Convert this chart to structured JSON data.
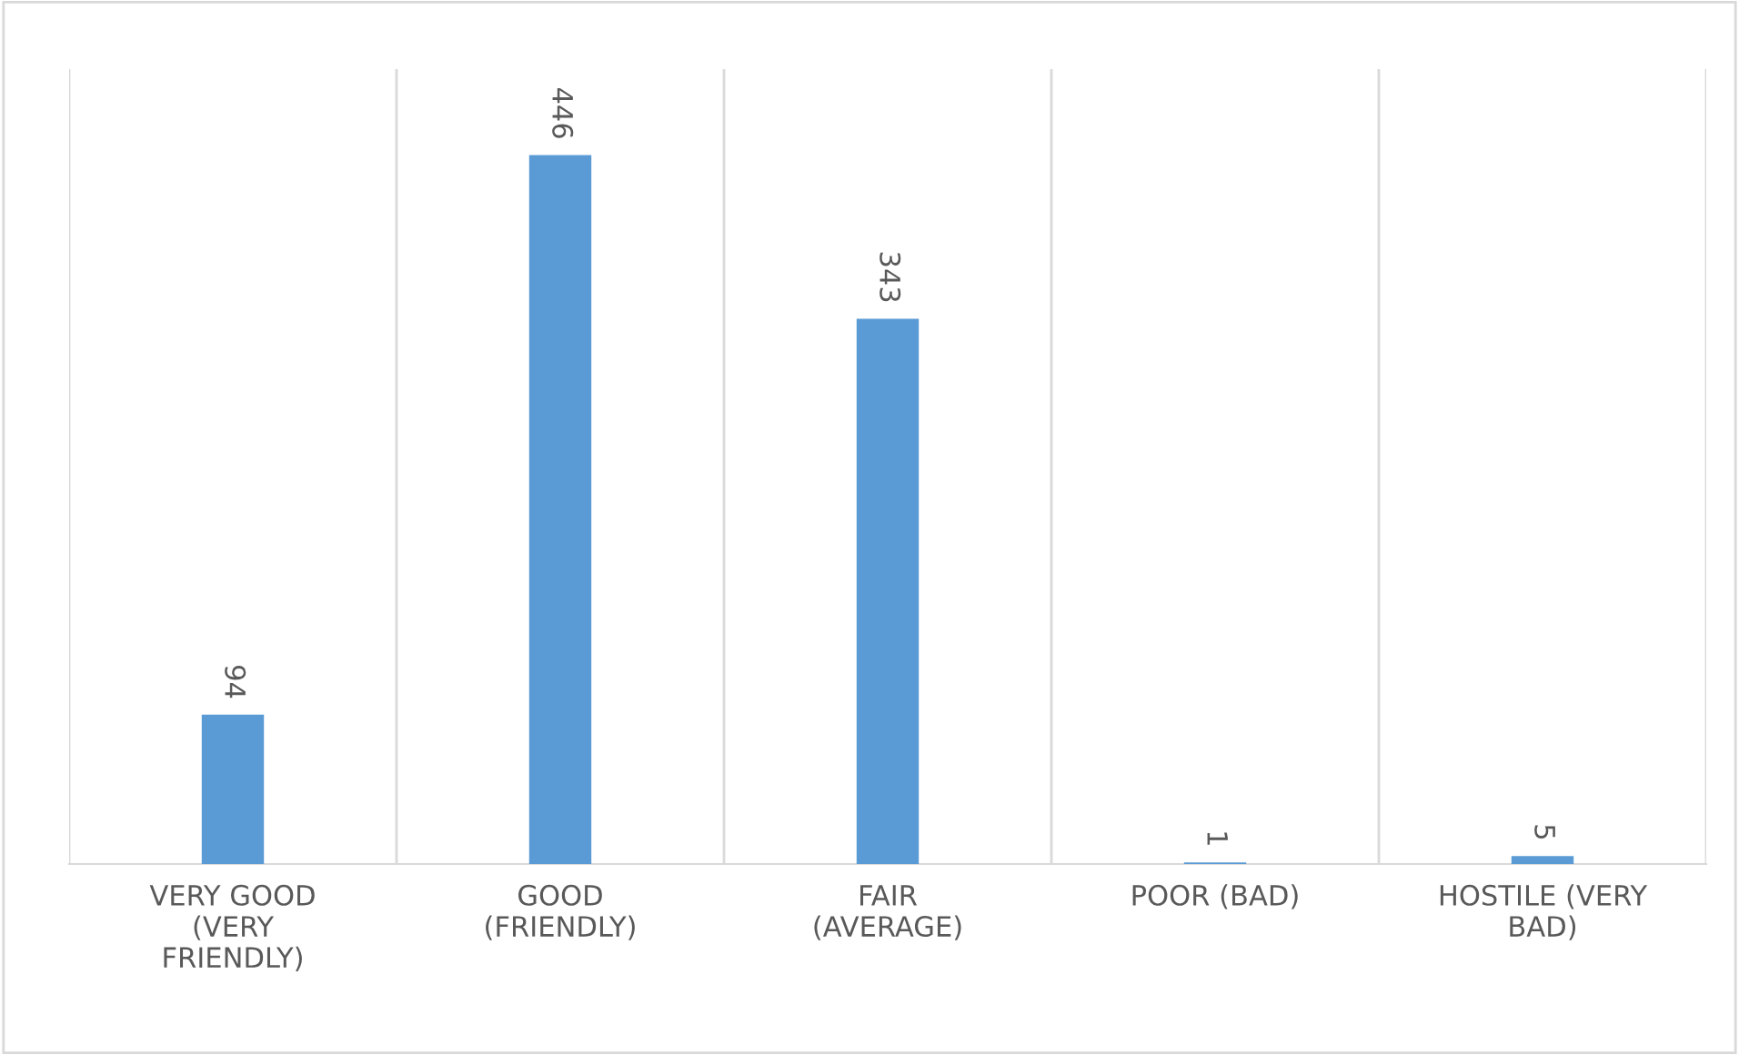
{
  "chart_data": {
    "type": "bar",
    "categories": [
      "VERY GOOD\n(VERY\nFRIENDLY)",
      "GOOD\n(FRIENDLY)",
      "FAIR\n(AVERAGE)",
      "POOR (BAD)",
      "HOSTILE (VERY\nBAD)"
    ],
    "values": [
      94,
      446,
      343,
      1,
      5
    ],
    "color": "#5b9bd5",
    "ylim": [
      0,
      500
    ],
    "tick_labels": "x",
    "grid": "x",
    "data_labels": true
  }
}
